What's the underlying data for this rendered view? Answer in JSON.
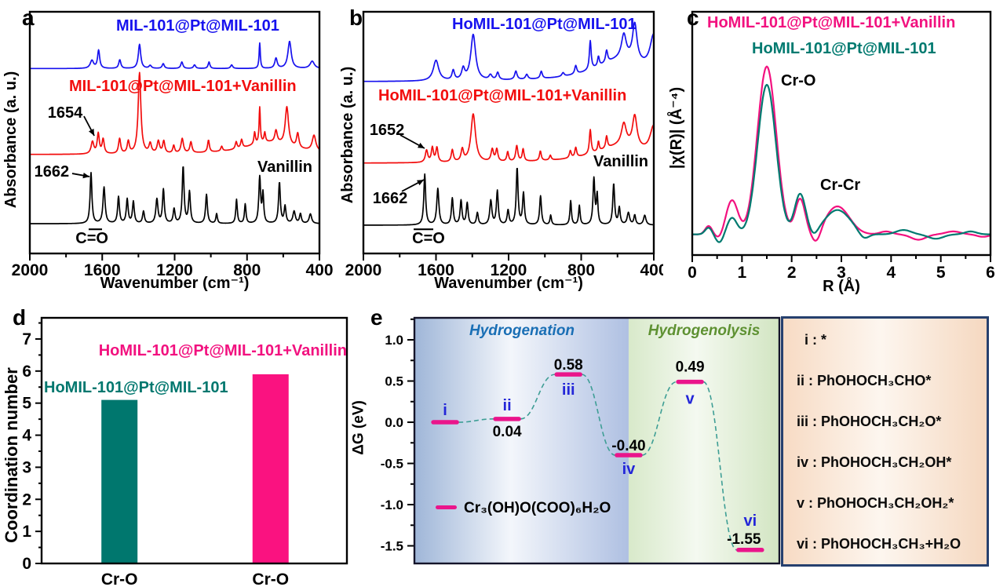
{
  "letters": {
    "a": "a",
    "b": "b",
    "c": "c",
    "d": "d",
    "e": "e"
  },
  "chart_data": [
    {
      "panel": "a",
      "type": "line",
      "kind": "ftir-spectra",
      "xlabel": "Wavenumber (cm⁻¹)",
      "ylabel": "Absorbance (a. u.)",
      "x_range": [
        2000,
        400
      ],
      "x_ticks": [
        2000,
        1600,
        1200,
        800,
        400
      ],
      "x_minor_ticks": [
        1800,
        1400,
        1000,
        600
      ],
      "grid": false,
      "series": [
        {
          "name": "MIL-101@Pt@MIL-101",
          "color": "#1712ee",
          "baseline": 0.765,
          "peaks": [
            [
              1657,
              0.033,
              11
            ],
            [
              1620,
              0.075,
              7
            ],
            [
              1503,
              0.036,
              7
            ],
            [
              1394,
              0.1,
              8
            ],
            [
              1335,
              0.012,
              8
            ],
            [
              1263,
              0.02,
              7
            ],
            [
              1160,
              0.027,
              7
            ],
            [
              1090,
              0.015,
              7
            ],
            [
              1010,
              0.027,
              6
            ],
            [
              885,
              0.015,
              7
            ],
            [
              730,
              0.105,
              4
            ],
            [
              640,
              0.042,
              8
            ],
            [
              565,
              0.112,
              11
            ],
            [
              440,
              0.03,
              14
            ]
          ]
        },
        {
          "name": "MIL-101@Pt@MIL-101+Vanillin",
          "color": "#f20d0d",
          "baseline": 0.409,
          "peaks": [
            [
              1654,
              0.05,
              9
            ],
            [
              1622,
              0.083,
              7
            ],
            [
              1595,
              0.06,
              7
            ],
            [
              1504,
              0.062,
              7
            ],
            [
              1456,
              0.05,
              7
            ],
            [
              1394,
              0.335,
              9
            ],
            [
              1335,
              0.04,
              8
            ],
            [
              1290,
              0.05,
              8
            ],
            [
              1260,
              0.05,
              7
            ],
            [
              1205,
              0.032,
              6
            ],
            [
              1158,
              0.06,
              8
            ],
            [
              1110,
              0.045,
              7
            ],
            [
              1013,
              0.05,
              6
            ],
            [
              940,
              0.02,
              6
            ],
            [
              860,
              0.03,
              6
            ],
            [
              830,
              0.035,
              6
            ],
            [
              758,
              0.05,
              5
            ],
            [
              730,
              0.148,
              4
            ],
            [
              702,
              0.04,
              5
            ],
            [
              680,
              0.05,
              160
            ],
            [
              640,
              0.05,
              8
            ],
            [
              580,
              0.16,
              11
            ],
            [
              520,
              0.06,
              8
            ],
            [
              430,
              0.065,
              12
            ]
          ]
        },
        {
          "name": "Vanillin",
          "color": "#000000",
          "baseline": 0.123,
          "peaks": [
            [
              1662,
              0.21,
              6
            ],
            [
              1590,
              0.15,
              7
            ],
            [
              1510,
              0.11,
              6
            ],
            [
              1462,
              0.1,
              6
            ],
            [
              1428,
              0.09,
              6
            ],
            [
              1372,
              0.05,
              6
            ],
            [
              1298,
              0.1,
              7
            ],
            [
              1262,
              0.14,
              6
            ],
            [
              1203,
              0.06,
              6
            ],
            [
              1153,
              0.235,
              6
            ],
            [
              1118,
              0.13,
              6
            ],
            [
              1024,
              0.12,
              6
            ],
            [
              968,
              0.04,
              5
            ],
            [
              858,
              0.1,
              5
            ],
            [
              810,
              0.08,
              5
            ],
            [
              730,
              0.19,
              6
            ],
            [
              712,
              0.12,
              5
            ],
            [
              621,
              0.17,
              6
            ],
            [
              590,
              0.07,
              6
            ],
            [
              540,
              0.05,
              8
            ],
            [
              505,
              0.04,
              6
            ],
            [
              450,
              0.04,
              8
            ]
          ]
        }
      ],
      "annotations": [
        {
          "text": "1654",
          "x": 1805,
          "y": 0.584,
          "arrow": {
            "x1": 1701,
            "y1": 0.568,
            "x2": 1644,
            "y2": 0.487
          }
        },
        {
          "text": "1662",
          "x": 1879,
          "y": 0.341,
          "arrow": {
            "x1": 1766,
            "y1": 0.331,
            "x2": 1670,
            "y2": 0.318
          }
        },
        {
          "text": "C=O",
          "x": 1657,
          "y": 0.065,
          "bar": {
            "x1": 1675,
            "x2": 1601,
            "y": 0.1
          }
        }
      ]
    },
    {
      "panel": "b",
      "type": "line",
      "kind": "ftir-spectra",
      "xlabel": "Wavenumber (cm⁻¹)",
      "ylabel": "Absorbance (a. u.)",
      "x_range": [
        2000,
        400
      ],
      "x_ticks": [
        2000,
        1600,
        1200,
        800,
        400
      ],
      "x_minor_ticks": [
        1800,
        1400,
        1000,
        600
      ],
      "grid": false,
      "series": [
        {
          "name": "HoMIL-101@Pt@MIL-101",
          "color": "#1712ee",
          "baseline": 0.71,
          "peaks": [
            [
              1600,
              0.085,
              18
            ],
            [
              1505,
              0.04,
              8
            ],
            [
              1450,
              0.045,
              10
            ],
            [
              1395,
              0.19,
              16
            ],
            [
              1300,
              0.02,
              10
            ],
            [
              1260,
              0.03,
              8
            ],
            [
              1160,
              0.035,
              8
            ],
            [
              1100,
              0.02,
              8
            ],
            [
              1020,
              0.03,
              7
            ],
            [
              900,
              0.015,
              8
            ],
            [
              830,
              0.035,
              7
            ],
            [
              750,
              0.12,
              6
            ],
            [
              705,
              0.04,
              6
            ],
            [
              660,
              0.05,
              7
            ],
            [
              580,
              0.09,
              180
            ],
            [
              565,
              0.1,
              16
            ],
            [
              505,
              0.155,
              15
            ],
            [
              400,
              0.15,
              25
            ]
          ]
        },
        {
          "name": "HoMIL-101@Pt@MIL-101+Vanillin",
          "color": "#f20d0d",
          "baseline": 0.373,
          "peaks": [
            [
              1652,
              0.05,
              8
            ],
            [
              1620,
              0.06,
              7
            ],
            [
              1595,
              0.06,
              7
            ],
            [
              1510,
              0.05,
              7
            ],
            [
              1455,
              0.05,
              8
            ],
            [
              1395,
              0.2,
              15
            ],
            [
              1290,
              0.05,
              8
            ],
            [
              1265,
              0.05,
              7
            ],
            [
              1205,
              0.04,
              6
            ],
            [
              1155,
              0.065,
              7
            ],
            [
              1120,
              0.05,
              6
            ],
            [
              1025,
              0.04,
              6
            ],
            [
              970,
              0.02,
              6
            ],
            [
              860,
              0.03,
              6
            ],
            [
              830,
              0.04,
              6
            ],
            [
              750,
              0.1,
              6
            ],
            [
              705,
              0.04,
              5
            ],
            [
              660,
              0.05,
              6
            ],
            [
              580,
              0.07,
              180
            ],
            [
              565,
              0.09,
              16
            ],
            [
              505,
              0.13,
              15
            ],
            [
              400,
              0.12,
              25
            ]
          ]
        },
        {
          "name": "Vanillin",
          "color": "#000000",
          "baseline": 0.117,
          "peaks": [
            [
              1662,
              0.21,
              6
            ],
            [
              1590,
              0.15,
              7
            ],
            [
              1510,
              0.11,
              6
            ],
            [
              1462,
              0.1,
              6
            ],
            [
              1428,
              0.09,
              6
            ],
            [
              1372,
              0.05,
              6
            ],
            [
              1298,
              0.1,
              7
            ],
            [
              1262,
              0.14,
              6
            ],
            [
              1203,
              0.06,
              6
            ],
            [
              1153,
              0.235,
              6
            ],
            [
              1118,
              0.13,
              6
            ],
            [
              1024,
              0.12,
              6
            ],
            [
              968,
              0.04,
              5
            ],
            [
              858,
              0.1,
              5
            ],
            [
              810,
              0.08,
              5
            ],
            [
              730,
              0.19,
              6
            ],
            [
              712,
              0.12,
              5
            ],
            [
              621,
              0.17,
              6
            ],
            [
              590,
              0.07,
              6
            ],
            [
              540,
              0.05,
              8
            ],
            [
              505,
              0.04,
              6
            ],
            [
              450,
              0.04,
              8
            ]
          ]
        }
      ],
      "annotations": [
        {
          "text": "1652",
          "x": 1870,
          "y": 0.513,
          "arrow": {
            "x1": 1797,
            "y1": 0.49,
            "x2": 1663,
            "y2": 0.435
          }
        },
        {
          "text": "1662",
          "x": 1853,
          "y": 0.231,
          "arrow": {
            "x1": 1788,
            "y1": 0.257,
            "x2": 1667,
            "y2": 0.305
          }
        },
        {
          "text": "C=O",
          "x": 1641,
          "y": 0.065,
          "bar": {
            "x1": 1723,
            "x2": 1615,
            "y": 0.1
          }
        }
      ]
    },
    {
      "panel": "c",
      "type": "line",
      "kind": "exafs",
      "xlabel": "R (Å)",
      "ylabel": "|χ(R)| (Å⁻⁴)",
      "x_range": [
        0,
        6
      ],
      "x_ticks": [
        0,
        1,
        2,
        3,
        4,
        5,
        6
      ],
      "x_minor_ticks": [
        0.5,
        1.5,
        2.5,
        3.5,
        4.5,
        5.5
      ],
      "grid": false,
      "series": [
        {
          "name": "HoMIL-101@Pt@MIL-101+Vanillin",
          "color": "#f2117f",
          "baseline": 0.085,
          "gaussians": [
            [
              0.33,
              0.035,
              0.07
            ],
            [
              0.55,
              -0.02,
              0.08
            ],
            [
              0.8,
              0.14,
              0.12
            ],
            [
              1.5,
              0.69,
              0.19
            ],
            [
              2.17,
              0.145,
              0.1
            ],
            [
              2.5,
              -0.05,
              0.09
            ],
            [
              2.92,
              0.115,
              0.24
            ],
            [
              3.9,
              0.012,
              0.12
            ],
            [
              4.55,
              -0.022,
              0.15
            ],
            [
              5.25,
              0.012,
              0.15
            ],
            [
              5.85,
              -0.01,
              0.12
            ]
          ]
        },
        {
          "name": "HoMIL-101@Pt@MIL-101",
          "color": "#007a70",
          "baseline": 0.085,
          "gaussians": [
            [
              0.33,
              0.028,
              0.07
            ],
            [
              0.55,
              -0.035,
              0.08
            ],
            [
              0.8,
              0.068,
              0.1
            ],
            [
              1.5,
              0.615,
              0.185
            ],
            [
              2.17,
              0.165,
              0.11
            ],
            [
              2.45,
              -0.02,
              0.08
            ],
            [
              2.92,
              0.1,
              0.26
            ],
            [
              3.45,
              -0.025,
              0.1
            ],
            [
              4.25,
              0.018,
              0.15
            ],
            [
              4.9,
              -0.018,
              0.15
            ],
            [
              5.6,
              0.012,
              0.12
            ]
          ]
        }
      ],
      "peak_labels": [
        {
          "text": "Cr-O",
          "r": 1.5
        },
        {
          "text": "Cr-Cr",
          "r": 2.9
        }
      ]
    },
    {
      "panel": "d",
      "type": "bar",
      "ylabel": "Coordination number",
      "categories": [
        "Cr-O",
        "Cr-O"
      ],
      "values": [
        5.1,
        5.9
      ],
      "bar_colors": [
        "#00776e",
        "#fa1280"
      ],
      "ylim": [
        0,
        7
      ],
      "y_ticks": [
        0,
        1,
        2,
        3,
        4,
        5,
        6,
        7
      ],
      "grid": false,
      "legend": [
        {
          "text": "HoMIL-101@Pt@MIL-101+Vanillin",
          "color": "#f2117f"
        },
        {
          "text": "HoMIL-101@Pt@MIL-101",
          "color": "#00776e"
        }
      ]
    },
    {
      "panel": "e",
      "type": "line",
      "kind": "energy-profile",
      "ylabel": "ΔG (eV)",
      "ylim": [
        -1.714,
        1.267
      ],
      "y_ticks": [
        "1.0",
        "0.5",
        "0.0",
        "-0.5",
        "-1.0",
        "-1.5"
      ],
      "y_minor_ticks": [
        1.25,
        0.75,
        0.25,
        -0.25,
        -0.75,
        -1.25
      ],
      "regions": [
        {
          "label": "Hydrogenation",
          "label_color": "#1a6fb5",
          "x0": 0,
          "x1": 0.587,
          "fill": [
            "#9fb6d8",
            "#f3f6fb",
            "#afc0e2"
          ]
        },
        {
          "label": "Hydrogenolysis",
          "label_color": "#5e9132",
          "x0": 0.587,
          "x1": 1,
          "fill": [
            "#d8e9ca",
            "#f4f9f0",
            "#d2e5c2"
          ]
        }
      ],
      "steps": [
        {
          "num": "i",
          "x": 0.084,
          "g": 0.0,
          "value": null,
          "num_dy": -9,
          "val_dy": 0,
          "val_dx": 0
        },
        {
          "num": "ii",
          "x": 0.254,
          "g": 0.04,
          "value": "0.04",
          "num_dy": -11,
          "val_dy": 22,
          "val_dx": 0
        },
        {
          "num": "iii",
          "x": 0.422,
          "g": 0.58,
          "value": "0.58",
          "num_dy": 26,
          "val_dy": -6,
          "val_dx": 0
        },
        {
          "num": "iv",
          "x": 0.587,
          "g": -0.4,
          "value": "-0.40",
          "num_dy": 24,
          "val_dy": -6,
          "val_dx": 0
        },
        {
          "num": "v",
          "x": 0.755,
          "g": 0.49,
          "value": "0.49",
          "num_dy": 28,
          "val_dy": -13,
          "val_dx": 0
        },
        {
          "num": "vi",
          "x": 0.92,
          "g": -1.55,
          "value": "-1.55",
          "num_dy": -31,
          "val_dy": -8,
          "val_dx": -8
        }
      ],
      "level_color": "#ea158b",
      "connector_color": "#3e9e95",
      "numeral_color": "#2326d8",
      "value_color": "#000000",
      "legend": {
        "text": "Cr₃(OH)O(COO)₆H₂O",
        "color": "#ea158b"
      },
      "species": [
        "i : *",
        "ii : PhOHOCH₃CHO*",
        "iii : PhOHOCH₃CH₂O*",
        "iv : PhOHOCH₃CH₂OH*",
        "v : PhOHOCH₃CH₂OH₂*",
        "vi : PhOHOCH₃CH₃+H₂O"
      ]
    }
  ]
}
